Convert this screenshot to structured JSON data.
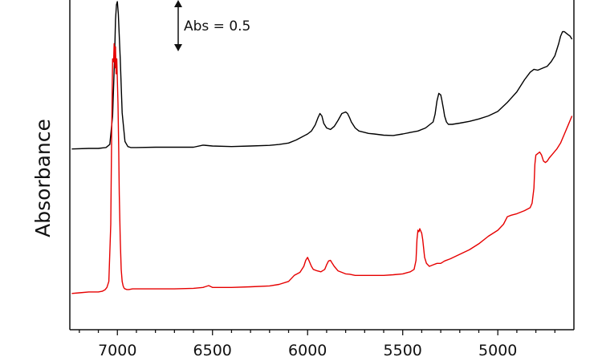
{
  "chart_data": {
    "type": "line",
    "title": "",
    "xlabel": "",
    "ylabel": "Absorbance",
    "xlim": [
      7250,
      4600
    ],
    "ylim": [
      0,
      1.0
    ],
    "x_reversed": true,
    "grid": false,
    "x_ticks": [
      7000,
      6500,
      6000,
      5500,
      5000
    ],
    "x_tick_labels": [
      "7000",
      "6500",
      "6000",
      "5500",
      "5000"
    ],
    "annotation": {
      "text": "Abs = 0.5",
      "scale_value": 0.5
    },
    "series": [
      {
        "color": "#000000",
        "x": [
          7240,
          7150,
          7100,
          7060,
          7040,
          7025,
          7015,
          7010,
          7005,
          7000,
          6995,
          6985,
          6975,
          6960,
          6945,
          6930,
          6900,
          6800,
          6700,
          6600,
          6550,
          6500,
          6400,
          6300,
          6200,
          6150,
          6100,
          6060,
          6030,
          6000,
          5980,
          5960,
          5945,
          5935,
          5925,
          5915,
          5900,
          5880,
          5860,
          5840,
          5820,
          5800,
          5790,
          5780,
          5770,
          5750,
          5730,
          5700,
          5680,
          5650,
          5600,
          5550,
          5500,
          5460,
          5420,
          5380,
          5340,
          5330,
          5320,
          5310,
          5300,
          5295,
          5285,
          5280,
          5270,
          5260,
          5240,
          5200,
          5150,
          5100,
          5050,
          5000,
          4950,
          4900,
          4860,
          4830,
          4810,
          4790,
          4760,
          4740,
          4720,
          4700,
          4680,
          4670,
          4660,
          4650,
          4640,
          4630,
          4620,
          4610
        ],
        "y": [
          0.55,
          0.552,
          0.552,
          0.555,
          0.565,
          0.66,
          0.85,
          0.98,
          1.03,
          1.04,
          1.0,
          0.85,
          0.67,
          0.575,
          0.558,
          0.555,
          0.555,
          0.556,
          0.556,
          0.556,
          0.563,
          0.56,
          0.558,
          0.56,
          0.562,
          0.565,
          0.57,
          0.58,
          0.59,
          0.6,
          0.61,
          0.63,
          0.655,
          0.668,
          0.66,
          0.635,
          0.62,
          0.615,
          0.625,
          0.645,
          0.668,
          0.673,
          0.668,
          0.655,
          0.64,
          0.62,
          0.61,
          0.605,
          0.602,
          0.6,
          0.596,
          0.595,
          0.6,
          0.605,
          0.61,
          0.62,
          0.64,
          0.665,
          0.71,
          0.735,
          0.73,
          0.715,
          0.68,
          0.66,
          0.64,
          0.632,
          0.632,
          0.636,
          0.642,
          0.65,
          0.66,
          0.675,
          0.705,
          0.74,
          0.78,
          0.805,
          0.815,
          0.812,
          0.82,
          0.825,
          0.84,
          0.86,
          0.9,
          0.925,
          0.94,
          0.94,
          0.935,
          0.93,
          0.925,
          0.915
        ]
      },
      {
        "color": "#e60000",
        "x": [
          7240,
          7200,
          7150,
          7100,
          7080,
          7065,
          7055,
          7045,
          7035,
          7030,
          7025,
          7020,
          7017,
          7013,
          7010,
          7007,
          7003,
          7000,
          6997,
          6993,
          6990,
          6985,
          6980,
          6975,
          6970,
          6965,
          6960,
          6950,
          6940,
          6920,
          6900,
          6800,
          6700,
          6600,
          6550,
          6520,
          6500,
          6400,
          6300,
          6200,
          6150,
          6100,
          6070,
          6040,
          6020,
          6010,
          6000,
          5990,
          5980,
          5970,
          5950,
          5930,
          5910,
          5900,
          5890,
          5880,
          5870,
          5860,
          5840,
          5820,
          5800,
          5780,
          5750,
          5700,
          5650,
          5600,
          5550,
          5500,
          5460,
          5440,
          5430,
          5425,
          5420,
          5415,
          5410,
          5400,
          5395,
          5390,
          5385,
          5375,
          5360,
          5340,
          5320,
          5300,
          5280,
          5250,
          5200,
          5150,
          5100,
          5050,
          5000,
          4970,
          4950,
          4930,
          4900,
          4860,
          4830,
          4820,
          4810,
          4805,
          4800,
          4790,
          4780,
          4770,
          4760,
          4750,
          4740,
          4730,
          4710,
          4690,
          4670,
          4650,
          4630,
          4610
        ],
        "y": [
          0.07,
          0.072,
          0.075,
          0.075,
          0.077,
          0.082,
          0.09,
          0.11,
          0.3,
          0.6,
          0.85,
          0.84,
          0.9,
          0.82,
          0.89,
          0.8,
          0.85,
          0.78,
          0.7,
          0.55,
          0.4,
          0.25,
          0.15,
          0.11,
          0.095,
          0.088,
          0.085,
          0.083,
          0.083,
          0.085,
          0.085,
          0.085,
          0.085,
          0.087,
          0.09,
          0.096,
          0.09,
          0.09,
          0.092,
          0.095,
          0.1,
          0.11,
          0.13,
          0.14,
          0.16,
          0.18,
          0.19,
          0.175,
          0.16,
          0.15,
          0.145,
          0.142,
          0.15,
          0.165,
          0.178,
          0.18,
          0.17,
          0.16,
          0.145,
          0.14,
          0.135,
          0.134,
          0.13,
          0.13,
          0.13,
          0.13,
          0.132,
          0.135,
          0.142,
          0.15,
          0.18,
          0.25,
          0.28,
          0.275,
          0.285,
          0.27,
          0.25,
          0.22,
          0.19,
          0.17,
          0.16,
          0.165,
          0.17,
          0.17,
          0.178,
          0.185,
          0.2,
          0.215,
          0.235,
          0.26,
          0.28,
          0.3,
          0.325,
          0.33,
          0.335,
          0.345,
          0.355,
          0.37,
          0.42,
          0.5,
          0.53,
          0.535,
          0.54,
          0.53,
          0.51,
          0.505,
          0.51,
          0.52,
          0.535,
          0.55,
          0.57,
          0.6,
          0.63,
          0.66
        ]
      }
    ]
  }
}
